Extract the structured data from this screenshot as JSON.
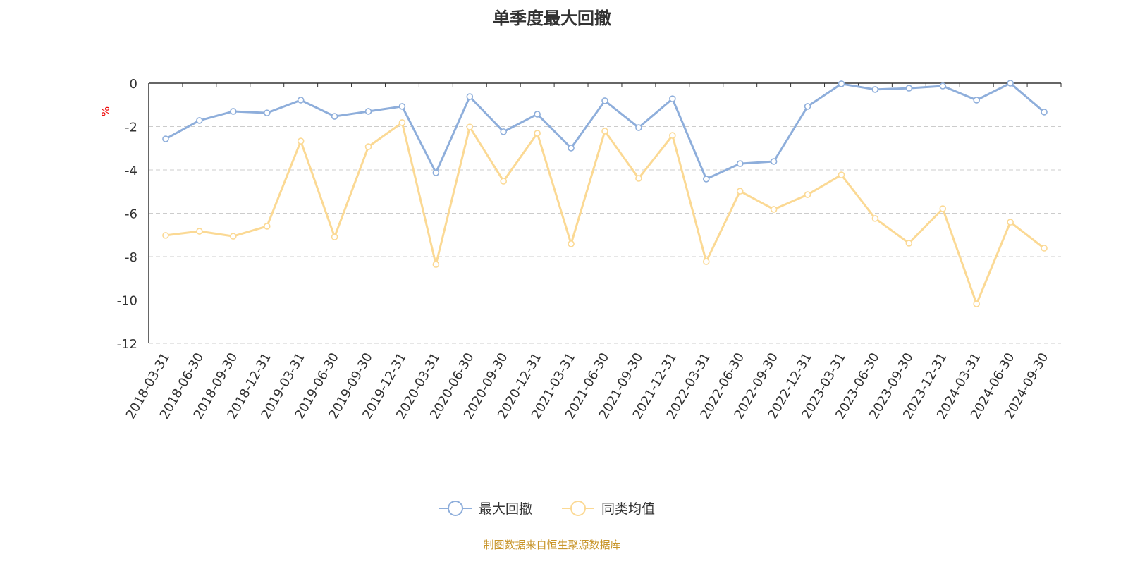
{
  "chart_data": {
    "type": "line",
    "title": "单季度最大回撤",
    "ylabel": "%",
    "xlabel": "",
    "ylim": [
      -12,
      0
    ],
    "yticks": [
      0,
      -2,
      -4,
      -6,
      -8,
      -10,
      -12
    ],
    "grid": true,
    "legend_position": "bottom",
    "categories": [
      "2018-03-31",
      "2018-06-30",
      "2018-09-30",
      "2018-12-31",
      "2019-03-31",
      "2019-06-30",
      "2019-09-30",
      "2019-12-31",
      "2020-03-31",
      "2020-06-30",
      "2020-09-30",
      "2020-12-31",
      "2021-03-31",
      "2021-06-30",
      "2021-09-30",
      "2021-12-31",
      "2022-03-31",
      "2022-06-30",
      "2022-09-30",
      "2022-12-31",
      "2023-03-31",
      "2023-06-30",
      "2023-09-30",
      "2023-12-31",
      "2024-03-31",
      "2024-06-30",
      "2024-09-30"
    ],
    "series": [
      {
        "name": "最大回撤",
        "color": "#8eaedb",
        "values": [
          -2.57,
          -1.72,
          -1.3,
          -1.37,
          -0.78,
          -1.53,
          -1.3,
          -1.07,
          -4.13,
          -0.62,
          -2.24,
          -1.43,
          -2.99,
          -0.81,
          -2.05,
          -0.72,
          -4.42,
          -3.71,
          -3.61,
          -1.07,
          -0.03,
          -0.29,
          -0.23,
          -0.13,
          -0.78,
          0.0,
          -1.33
        ]
      },
      {
        "name": "同类均值",
        "color": "#fbd994",
        "values": [
          -7.02,
          -6.83,
          -7.06,
          -6.6,
          -2.67,
          -7.09,
          -2.93,
          -1.82,
          -8.36,
          -2.02,
          -4.52,
          -2.31,
          -7.41,
          -2.21,
          -4.39,
          -2.41,
          -8.23,
          -4.98,
          -5.82,
          -5.14,
          -4.23,
          -6.24,
          -7.38,
          -5.79,
          -10.18,
          -6.41,
          -7.61
        ]
      }
    ]
  },
  "footer": "制图数据来自恒生聚源数据库"
}
